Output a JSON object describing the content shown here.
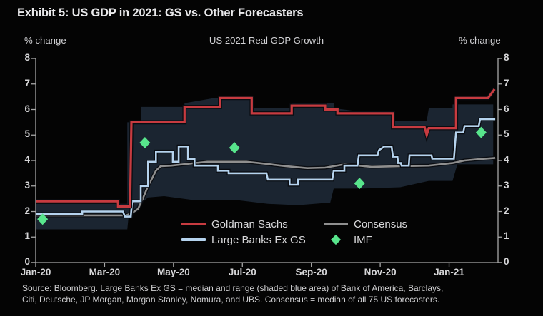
{
  "title": "Exhibit 5: US GDP in 2021: GS vs. Other Forecasters",
  "subtitle": "US 2021 Real GDP Growth",
  "y_axis_unit": "% change",
  "source": {
    "line1": "Source: Bloomberg.  Large Banks Ex GS = median and range (shaded blue area) of Bank of America, Barclays,",
    "line2": "Citi, Deutsche, JP Morgan, Morgan Stanley, Nomura, and UBS.  Consensus = median of all 75 US forecasters."
  },
  "colors": {
    "background": "#040404",
    "goldman_sachs": "#c73b40",
    "large_banks": "#b5d3ee",
    "consensus": "#8f8f8f",
    "imf": "#58e58c",
    "band": "#1b2531",
    "axis": "#a8a8a8",
    "text": "#d6d6d8"
  },
  "legend": {
    "items": [
      {
        "label": "Goldman Sachs",
        "swatch": "line",
        "color": "#c73b40"
      },
      {
        "label": "Consensus",
        "swatch": "line",
        "color": "#8f8f8f"
      },
      {
        "label": "Large Banks Ex GS",
        "swatch": "line",
        "color": "#b5d3ee"
      },
      {
        "label": "IMF",
        "swatch": "diamond",
        "color": "#58e58c"
      }
    ]
  },
  "chart_data": {
    "type": "line",
    "title": "US 2021 Real GDP Growth",
    "ylabel": "% change",
    "ylim": [
      0,
      8
    ],
    "y_ticks": [
      0,
      1,
      2,
      3,
      4,
      5,
      6,
      7,
      8
    ],
    "x_range_months": [
      0,
      13.42
    ],
    "x_ticks": [
      {
        "month": 0,
        "label": "Jan-20"
      },
      {
        "month": 2,
        "label": "Mar-20"
      },
      {
        "month": 4,
        "label": "May-20"
      },
      {
        "month": 6,
        "label": "Jul-20"
      },
      {
        "month": 8,
        "label": "Sep-20"
      },
      {
        "month": 10,
        "label": "Nov-20"
      },
      {
        "month": 12,
        "label": "Jan-21"
      }
    ],
    "series": [
      {
        "name": "Goldman Sachs",
        "type": "step-line",
        "color": "#c73b40",
        "width": 3.2,
        "points": [
          [
            0,
            2.4
          ],
          [
            2.39,
            2.4
          ],
          [
            2.39,
            2.2
          ],
          [
            2.74,
            2.2
          ],
          [
            2.78,
            5.5
          ],
          [
            4.32,
            5.5
          ],
          [
            4.32,
            6.1
          ],
          [
            5.35,
            6.1
          ],
          [
            5.35,
            6.45
          ],
          [
            6.27,
            6.45
          ],
          [
            6.27,
            5.85
          ],
          [
            7.43,
            5.85
          ],
          [
            7.43,
            6.15
          ],
          [
            8.4,
            6.15
          ],
          [
            8.4,
            6.0
          ],
          [
            8.76,
            6.0
          ],
          [
            8.76,
            5.85
          ],
          [
            10.37,
            5.85
          ],
          [
            10.37,
            5.3
          ],
          [
            11.29,
            5.3
          ],
          [
            11.35,
            5.0
          ],
          [
            11.41,
            5.27
          ],
          [
            12.2,
            5.27
          ],
          [
            12.2,
            6.45
          ],
          [
            13.13,
            6.45
          ],
          [
            13.32,
            6.8
          ]
        ]
      },
      {
        "name": "Large Banks Ex GS",
        "type": "step-line",
        "color": "#b5d3ee",
        "width": 2.6,
        "points": [
          [
            0,
            1.9
          ],
          [
            1.35,
            1.9
          ],
          [
            1.35,
            2.0
          ],
          [
            2.53,
            2.0
          ],
          [
            2.59,
            1.8
          ],
          [
            2.76,
            1.8
          ],
          [
            2.8,
            2.4
          ],
          [
            3.05,
            2.4
          ],
          [
            3.05,
            3.0
          ],
          [
            3.26,
            3.0
          ],
          [
            3.26,
            3.95
          ],
          [
            3.49,
            3.95
          ],
          [
            3.49,
            4.35
          ],
          [
            3.98,
            4.35
          ],
          [
            3.98,
            3.95
          ],
          [
            4.15,
            3.95
          ],
          [
            4.15,
            4.55
          ],
          [
            4.42,
            4.55
          ],
          [
            4.42,
            4.05
          ],
          [
            4.61,
            4.05
          ],
          [
            4.61,
            3.8
          ],
          [
            5.29,
            3.8
          ],
          [
            5.29,
            3.6
          ],
          [
            5.6,
            3.6
          ],
          [
            5.6,
            3.5
          ],
          [
            6.7,
            3.5
          ],
          [
            6.74,
            3.25
          ],
          [
            7.37,
            3.25
          ],
          [
            7.37,
            3.05
          ],
          [
            7.61,
            3.05
          ],
          [
            7.61,
            3.25
          ],
          [
            8.61,
            3.25
          ],
          [
            8.65,
            3.6
          ],
          [
            8.96,
            3.6
          ],
          [
            8.96,
            3.8
          ],
          [
            9.34,
            3.8
          ],
          [
            9.38,
            4.2
          ],
          [
            9.92,
            4.2
          ],
          [
            9.96,
            4.4
          ],
          [
            10.12,
            4.55
          ],
          [
            10.33,
            4.55
          ],
          [
            10.37,
            4.15
          ],
          [
            10.5,
            4.15
          ],
          [
            10.52,
            3.9
          ],
          [
            10.6,
            3.9
          ],
          [
            10.62,
            3.8
          ],
          [
            10.83,
            3.8
          ],
          [
            10.85,
            4.2
          ],
          [
            11.49,
            4.2
          ],
          [
            11.51,
            4.07
          ],
          [
            12.14,
            4.07
          ],
          [
            12.2,
            5.1
          ],
          [
            12.41,
            5.1
          ],
          [
            12.45,
            5.35
          ],
          [
            12.86,
            5.35
          ],
          [
            12.9,
            5.62
          ],
          [
            13.34,
            5.62
          ]
        ]
      },
      {
        "name": "Consensus",
        "type": "step-line",
        "color": "#8f8f8f",
        "width": 2.6,
        "points": [
          [
            0,
            1.85
          ],
          [
            2.63,
            1.85
          ],
          [
            2.8,
            1.95
          ],
          [
            2.97,
            2.1
          ],
          [
            3.11,
            2.5
          ],
          [
            3.26,
            3.0
          ],
          [
            3.38,
            3.3
          ],
          [
            3.49,
            3.6
          ],
          [
            3.63,
            3.78
          ],
          [
            3.94,
            3.8
          ],
          [
            4.98,
            3.95
          ],
          [
            6.12,
            3.95
          ],
          [
            6.47,
            3.9
          ],
          [
            7.26,
            3.78
          ],
          [
            7.88,
            3.7
          ],
          [
            8.4,
            3.72
          ],
          [
            8.96,
            3.85
          ],
          [
            9.75,
            3.75
          ],
          [
            10.58,
            3.78
          ],
          [
            11.41,
            3.8
          ],
          [
            12.1,
            3.9
          ],
          [
            12.45,
            4.0
          ],
          [
            12.86,
            4.05
          ],
          [
            13.34,
            4.1
          ]
        ]
      },
      {
        "name": "IMF",
        "type": "scatter-diamond",
        "color": "#58e58c",
        "points": [
          [
            0.2,
            1.7
          ],
          [
            3.17,
            4.7
          ],
          [
            5.77,
            4.5
          ],
          [
            9.4,
            3.1
          ],
          [
            12.93,
            5.1
          ]
        ]
      }
    ],
    "band": {
      "name": "Large Banks Ex GS range (shaded blue area)",
      "color": "#1b2531",
      "upper": [
        [
          0,
          2.3
        ],
        [
          2.66,
          2.3
        ],
        [
          2.66,
          5.5
        ],
        [
          3.05,
          5.5
        ],
        [
          3.05,
          6.1
        ],
        [
          4.32,
          6.1
        ],
        [
          4.32,
          6.25
        ],
        [
          5.19,
          6.45
        ],
        [
          6.27,
          6.45
        ],
        [
          6.27,
          6.05
        ],
        [
          7.43,
          6.05
        ],
        [
          7.43,
          6.25
        ],
        [
          8.65,
          6.25
        ],
        [
          8.65,
          6.05
        ],
        [
          9.54,
          5.9
        ],
        [
          10.33,
          5.9
        ],
        [
          10.33,
          5.55
        ],
        [
          11.35,
          5.55
        ],
        [
          11.41,
          6.05
        ],
        [
          12.1,
          6.05
        ],
        [
          12.1,
          6.2
        ],
        [
          13.28,
          6.2
        ]
      ],
      "lower": [
        [
          0,
          1.3
        ],
        [
          2.66,
          1.3
        ],
        [
          2.7,
          1.85
        ],
        [
          3.05,
          2.3
        ],
        [
          3.26,
          2.55
        ],
        [
          3.73,
          2.6
        ],
        [
          4.56,
          2.45
        ],
        [
          5.81,
          2.45
        ],
        [
          6.74,
          2.3
        ],
        [
          7.61,
          2.25
        ],
        [
          8.55,
          2.35
        ],
        [
          8.65,
          2.9
        ],
        [
          9.44,
          2.9
        ],
        [
          10.58,
          2.95
        ],
        [
          11.41,
          3.2
        ],
        [
          12.1,
          3.2
        ],
        [
          12.24,
          3.85
        ],
        [
          13.28,
          3.85
        ]
      ]
    },
    "legend_position": "inside-bottom-center",
    "grid": false
  }
}
